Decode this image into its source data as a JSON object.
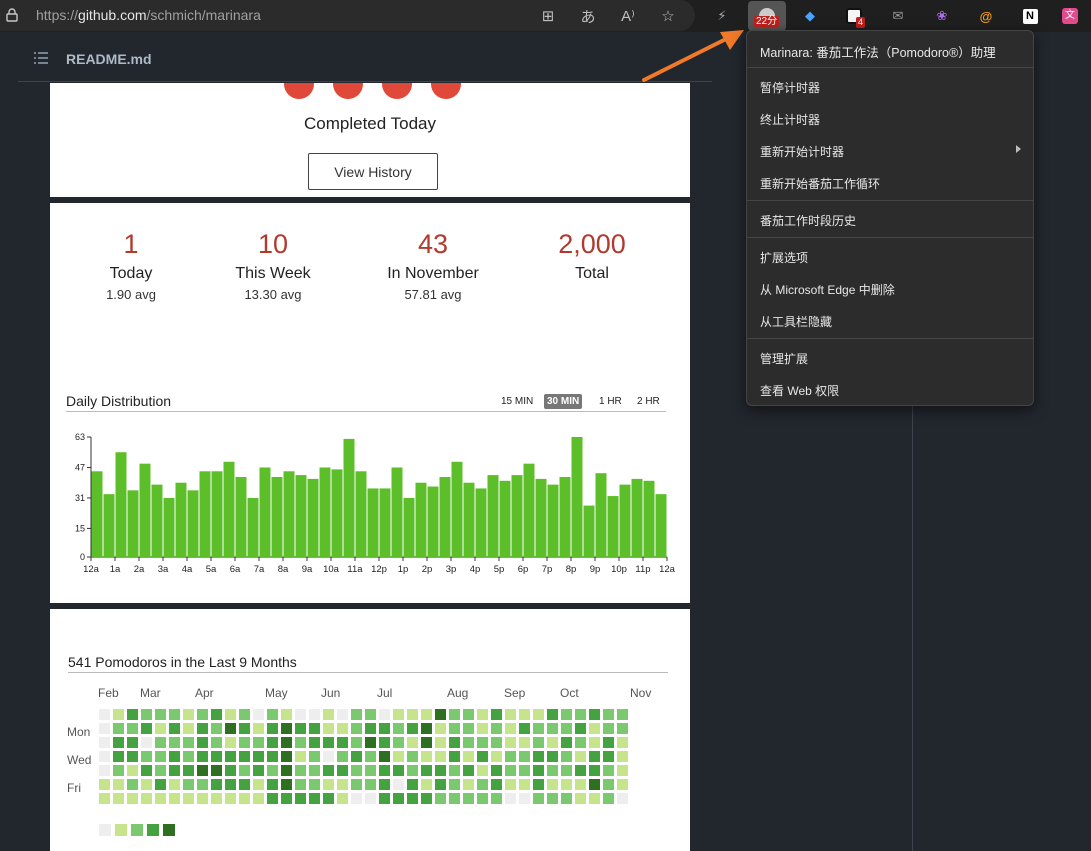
{
  "browser": {
    "url_scheme": "https://",
    "url_domain": "github.com",
    "url_path": "/schmich/marinara",
    "extension_badge_timer": "22分",
    "extension_badge_count": "4",
    "toolbar_icons": [
      "apps-icon",
      "translate-icon",
      "read-aloud-icon",
      "favorite-star-icon"
    ],
    "extensions": [
      "bolt-extension-icon",
      "marinara-extension-icon",
      "gem-extension-icon",
      "tab-extension-icon",
      "mail-extension-icon",
      "brain-extension-icon",
      "at-extension-icon",
      "notion-extension-icon",
      "translate-extension-icon"
    ]
  },
  "file": {
    "name": "README.md"
  },
  "summary": {
    "completed_label": "Completed Today",
    "view_history_label": "View History"
  },
  "stats": [
    {
      "value": "1",
      "label": "Today",
      "avg": "1.90 avg"
    },
    {
      "value": "10",
      "label": "This Week",
      "avg": "13.30 avg"
    },
    {
      "value": "43",
      "label": "In November",
      "avg": "57.81 avg"
    },
    {
      "value": "2,000",
      "label": "Total",
      "avg": ""
    }
  ],
  "distribution": {
    "title": "Daily Distribution",
    "ranges": [
      "15 MIN",
      "30 MIN",
      "1 HR",
      "2 HR"
    ],
    "selected_range": "30 MIN"
  },
  "chart_data": {
    "type": "bar",
    "title": "Daily Distribution",
    "xlabel": "",
    "ylabel": "",
    "ylim": [
      0,
      63
    ],
    "yticks": [
      0,
      15,
      31,
      47,
      63
    ],
    "xticks": [
      "12a",
      "1a",
      "2a",
      "3a",
      "4a",
      "5a",
      "6a",
      "7a",
      "8a",
      "9a",
      "10a",
      "11a",
      "12p",
      "1p",
      "2p",
      "3p",
      "4p",
      "5p",
      "6p",
      "7p",
      "8p",
      "9p",
      "10p",
      "11p",
      "12a"
    ],
    "bar_color": "#5cbf2a",
    "values": [
      45,
      33,
      55,
      35,
      49,
      38,
      31,
      39,
      35,
      45,
      45,
      50,
      42,
      31,
      47,
      42,
      45,
      43,
      41,
      47,
      46,
      62,
      45,
      36,
      36,
      47,
      31,
      39,
      37,
      42,
      50,
      39,
      36,
      43,
      40,
      43,
      49,
      41,
      38,
      42,
      63,
      27,
      44,
      32,
      38,
      41,
      40,
      33
    ]
  },
  "heatmap": {
    "title": "541 Pomodoros in the Last 9 Months",
    "months": [
      "Feb",
      "Mar",
      "Apr",
      "May",
      "Jun",
      "Jul",
      "Aug",
      "Sep",
      "Oct",
      "Nov"
    ],
    "days": [
      "Mon",
      "Wed",
      "Fri"
    ],
    "legend_colors": [
      "#eeeeee",
      "#c6e48b",
      "#7bc96f",
      "#44a340",
      "#2f6f22"
    ],
    "weeks": [
      [
        0,
        0,
        0,
        0,
        0,
        1,
        1
      ],
      [
        1,
        2,
        3,
        3,
        2,
        1,
        1
      ],
      [
        3,
        2,
        3,
        3,
        1,
        2,
        1
      ],
      [
        2,
        3,
        0,
        2,
        3,
        1,
        1
      ],
      [
        2,
        1,
        2,
        2,
        2,
        3,
        1
      ],
      [
        2,
        3,
        2,
        3,
        3,
        1,
        1
      ],
      [
        1,
        1,
        2,
        2,
        3,
        2,
        1
      ],
      [
        2,
        3,
        3,
        3,
        4,
        2,
        1
      ],
      [
        3,
        2,
        2,
        3,
        4,
        3,
        1
      ],
      [
        1,
        4,
        1,
        3,
        3,
        3,
        1
      ],
      [
        2,
        3,
        2,
        3,
        2,
        3,
        1
      ],
      [
        0,
        1,
        2,
        3,
        3,
        1,
        1
      ],
      [
        2,
        3,
        3,
        3,
        2,
        3,
        3
      ],
      [
        1,
        4,
        4,
        4,
        4,
        4,
        3
      ],
      [
        0,
        3,
        2,
        1,
        2,
        2,
        3
      ],
      [
        0,
        3,
        3,
        2,
        2,
        2,
        3
      ],
      [
        1,
        1,
        3,
        0,
        3,
        1,
        3
      ],
      [
        0,
        1,
        3,
        2,
        3,
        1,
        1
      ],
      [
        2,
        2,
        2,
        3,
        2,
        2,
        0
      ],
      [
        2,
        3,
        4,
        2,
        2,
        2,
        0
      ],
      [
        0,
        3,
        3,
        4,
        3,
        3,
        3
      ],
      [
        1,
        2,
        2,
        1,
        3,
        0,
        3
      ],
      [
        1,
        3,
        1,
        2,
        2,
        3,
        3
      ],
      [
        1,
        4,
        4,
        1,
        3,
        1,
        3
      ],
      [
        4,
        1,
        1,
        1,
        3,
        3,
        2
      ],
      [
        2,
        2,
        3,
        3,
        2,
        2,
        2
      ],
      [
        2,
        2,
        2,
        1,
        3,
        1,
        2
      ],
      [
        1,
        1,
        2,
        3,
        1,
        2,
        2
      ],
      [
        3,
        2,
        2,
        1,
        3,
        3,
        2
      ],
      [
        1,
        1,
        1,
        2,
        2,
        1,
        0
      ],
      [
        1,
        3,
        1,
        2,
        2,
        1,
        0
      ],
      [
        1,
        2,
        2,
        3,
        3,
        3,
        2
      ],
      [
        3,
        2,
        1,
        3,
        2,
        1,
        2
      ],
      [
        2,
        2,
        3,
        2,
        2,
        1,
        2
      ],
      [
        2,
        3,
        2,
        1,
        3,
        1,
        1
      ],
      [
        3,
        1,
        1,
        3,
        3,
        4,
        1
      ],
      [
        2,
        2,
        3,
        3,
        2,
        2,
        2
      ],
      [
        2,
        2,
        1,
        1,
        1,
        1,
        0
      ]
    ]
  },
  "menu": {
    "title": "Marinara: 番茄工作法（Pomodoro®）助理",
    "items": [
      "暂停计时器",
      "终止计时器",
      "重新开始计时器",
      "重新开始番茄工作循环",
      "番茄工作时段历史",
      "扩展选项",
      "从 Microsoft Edge 中删除",
      "从工具栏隐藏",
      "管理扩展",
      "查看 Web 权限"
    ]
  },
  "colors": {
    "accent_red": "#b03a2e",
    "tomato": "#e0493a",
    "arrow": "#f07a2a"
  }
}
